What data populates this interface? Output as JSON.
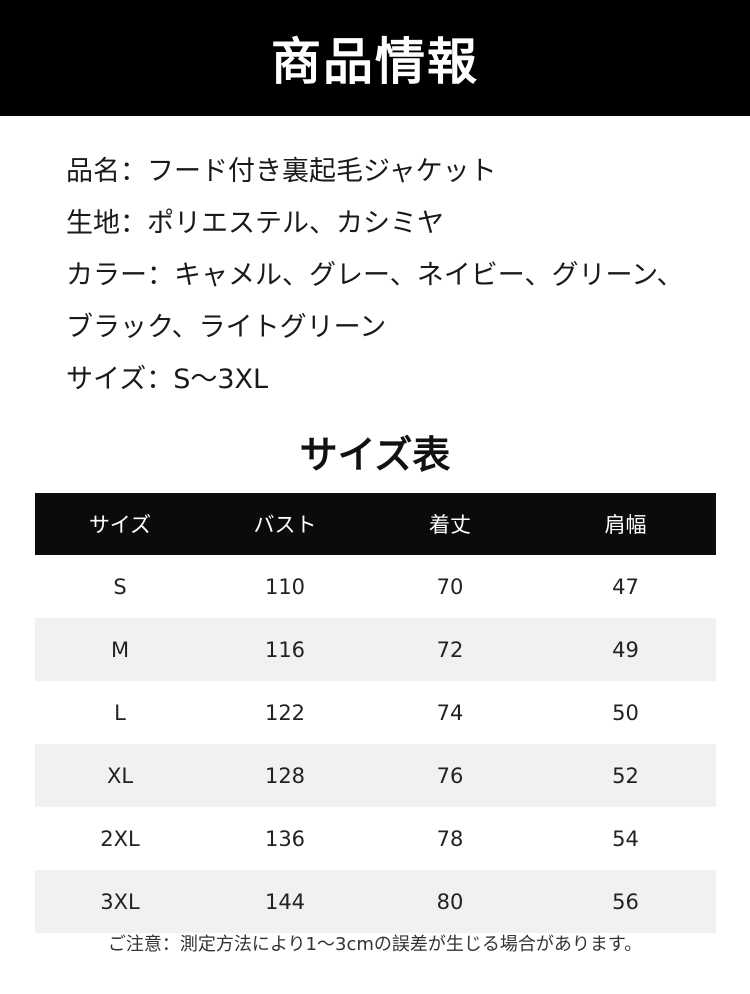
{
  "banner": {
    "title": "商品情報"
  },
  "info": [
    "品名：フード付き裏起毛ジャケット",
    "生地：ポリエステル、カシミヤ",
    "カラー：キャメル、グレー、ネイビー、グリーン、",
    "ブラック、ライトグリーン",
    "サイズ：S～3XL"
  ],
  "size_table": {
    "title": "サイズ表",
    "headers": [
      "サイズ",
      "バスト",
      "着丈",
      "肩幅"
    ],
    "rows": [
      [
        "S",
        "110",
        "70",
        "47"
      ],
      [
        "M",
        "116",
        "72",
        "49"
      ],
      [
        "L",
        "122",
        "74",
        "50"
      ],
      [
        "XL",
        "128",
        "76",
        "52"
      ],
      [
        "2XL",
        "136",
        "78",
        "54"
      ],
      [
        "3XL",
        "144",
        "80",
        "56"
      ]
    ]
  },
  "note": "ご注意：測定方法により1～3cmの誤差が生じる場合があります。"
}
